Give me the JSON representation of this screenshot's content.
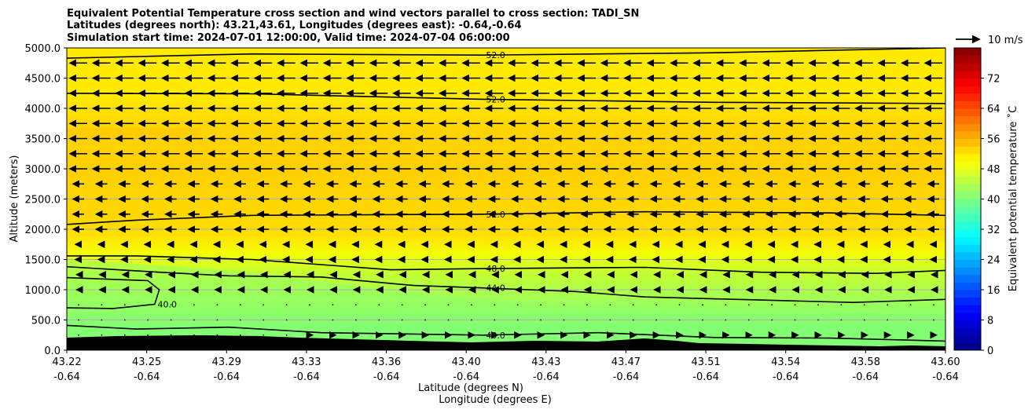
{
  "chart_data": {
    "type": "heatmap",
    "title_lines": [
      "Equivalent Potential Temperature cross section and wind vectors parallel to cross section: TADI_SN",
      "Latitudes (degrees north): 43.21,43.61, Longitudes (degrees east): -0.64,-0.64",
      "Simulation start time: 2024-07-01 12:00:00, Valid time: 2024-07-04 06:00:00"
    ],
    "xlabel_lines": [
      "Latitude (degrees N)",
      "Longitude (degrees E)"
    ],
    "ylabel": "Altitude (meters)",
    "x_ticks": [
      {
        "lat": "43.22",
        "lon": "-0.64"
      },
      {
        "lat": "43.25",
        "lon": "-0.64"
      },
      {
        "lat": "43.29",
        "lon": "-0.64"
      },
      {
        "lat": "43.33",
        "lon": "-0.64"
      },
      {
        "lat": "43.36",
        "lon": "-0.64"
      },
      {
        "lat": "43.40",
        "lon": "-0.64"
      },
      {
        "lat": "43.43",
        "lon": "-0.64"
      },
      {
        "lat": "43.47",
        "lon": "-0.64"
      },
      {
        "lat": "43.51",
        "lon": "-0.64"
      },
      {
        "lat": "43.54",
        "lon": "-0.64"
      },
      {
        "lat": "43.58",
        "lon": "-0.64"
      },
      {
        "lat": "43.60",
        "lon": "-0.64"
      }
    ],
    "xlim": [
      43.22,
      43.6
    ],
    "y_ticks": [
      "0.0",
      "500.0",
      "1000.0",
      "1500.0",
      "2000.0",
      "2500.0",
      "3000.0",
      "3500.0",
      "4000.0",
      "4500.0",
      "5000.0"
    ],
    "ylim": [
      0,
      5000
    ],
    "grid": "horizontal",
    "colorbar": {
      "label": "Equivalent potential temperature $^\\circ$C",
      "label_text": "Equivalent potential temperature ˚C",
      "ticks": [
        "0",
        "8",
        "16",
        "24",
        "32",
        "40",
        "48",
        "56",
        "64",
        "72"
      ],
      "range": [
        0,
        80
      ],
      "colormap": "jet"
    },
    "quiver_key": {
      "label": "10 m/s"
    },
    "contours": [
      {
        "level": 52.0,
        "label": "52.0",
        "points": [
          [
            43.22,
            4830
          ],
          [
            43.3,
            4900
          ],
          [
            43.4,
            4880
          ],
          [
            43.5,
            4920
          ],
          [
            43.6,
            5000
          ]
        ]
      },
      {
        "level": 52.0,
        "label": "52.0",
        "points": [
          [
            43.22,
            4250
          ],
          [
            43.3,
            4240
          ],
          [
            43.4,
            4150
          ],
          [
            43.5,
            4100
          ],
          [
            43.6,
            4080
          ]
        ]
      },
      {
        "level": 52.0,
        "label": "52.0",
        "points": [
          [
            43.22,
            2080
          ],
          [
            43.25,
            2150
          ],
          [
            43.3,
            2230
          ],
          [
            43.4,
            2250
          ],
          [
            43.47,
            2290
          ],
          [
            43.55,
            2270
          ],
          [
            43.6,
            2230
          ]
        ]
      },
      {
        "level": 48.0,
        "label": "48.0",
        "points": [
          [
            43.22,
            1560
          ],
          [
            43.25,
            1560
          ],
          [
            43.3,
            1500
          ],
          [
            43.36,
            1330
          ],
          [
            43.4,
            1350
          ],
          [
            43.47,
            1370
          ],
          [
            43.52,
            1290
          ],
          [
            43.57,
            1270
          ],
          [
            43.6,
            1320
          ]
        ]
      },
      {
        "level": 44.0,
        "label": "44.0",
        "points": [
          [
            43.22,
            1380
          ],
          [
            43.26,
            1290
          ],
          [
            43.29,
            1230
          ],
          [
            43.33,
            1210
          ],
          [
            43.37,
            1070
          ],
          [
            43.4,
            1030
          ],
          [
            43.44,
            970
          ],
          [
            43.47,
            880
          ],
          [
            43.52,
            830
          ],
          [
            43.56,
            790
          ],
          [
            43.6,
            840
          ]
        ]
      },
      {
        "level": 40.0,
        "label": "40.0",
        "points": [
          [
            43.22,
            1200
          ],
          [
            43.255,
            1150
          ],
          [
            43.26,
            1000
          ],
          [
            43.258,
            760
          ],
          [
            43.24,
            690
          ],
          [
            43.22,
            700
          ]
        ]
      },
      {
        "level": 40.0,
        "label": "40.0",
        "points": [
          [
            43.22,
            410
          ],
          [
            43.25,
            350
          ],
          [
            43.29,
            380
          ],
          [
            43.33,
            290
          ],
          [
            43.4,
            250
          ],
          [
            43.45,
            290
          ],
          [
            43.5,
            210
          ],
          [
            43.55,
            200
          ],
          [
            43.6,
            150
          ]
        ]
      }
    ],
    "terrain_note": "black terrain mask at surface"
  }
}
